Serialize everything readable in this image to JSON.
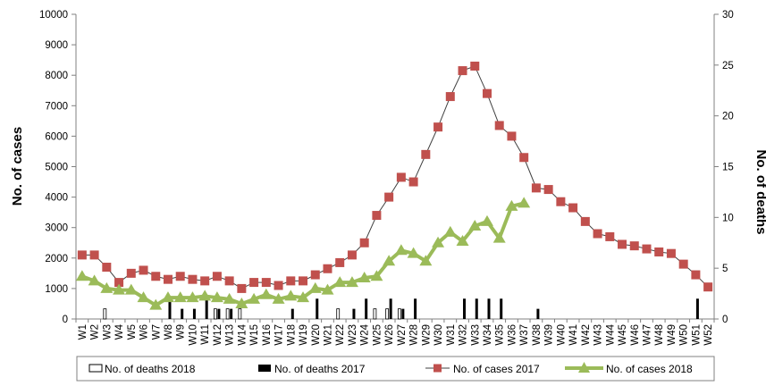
{
  "chart_data": {
    "type": "bar+line",
    "categories": [
      "W1",
      "W2",
      "W3",
      "W4",
      "W5",
      "W6",
      "W7",
      "W8",
      "W9",
      "W10",
      "W11",
      "W12",
      "W13",
      "W14",
      "W15",
      "W16",
      "W17",
      "W18",
      "W19",
      "W20",
      "W21",
      "W22",
      "W23",
      "W24",
      "W25",
      "W26",
      "W27",
      "W28",
      "W29",
      "W30",
      "W31",
      "W32",
      "W33",
      "W34",
      "W35",
      "W36",
      "W37",
      "W38",
      "W39",
      "W40",
      "W41",
      "W42",
      "W43",
      "W44",
      "W45",
      "W46",
      "W47",
      "W48",
      "W49",
      "W50",
      "W51",
      "W52"
    ],
    "left_axis": {
      "label": "No. of cases",
      "min": 0,
      "max": 10000,
      "ticks": [
        "0",
        "1000",
        "2000",
        "3000",
        "4000",
        "5000",
        "6000",
        "7000",
        "8000",
        "9000",
        "10000"
      ]
    },
    "right_axis": {
      "label": "No. of deaths",
      "min": 0,
      "max": 30,
      "ticks": [
        "0",
        "5",
        "10",
        "15",
        "20",
        "25",
        "30"
      ]
    },
    "series": [
      {
        "name": "No. of deaths 2018",
        "type": "bar",
        "axis": "right",
        "color": "#ffffff",
        "stroke": "#000000",
        "values": [
          0,
          0,
          1,
          0,
          0,
          0,
          0,
          0,
          0,
          0,
          0,
          1,
          1,
          1,
          0,
          0,
          0,
          0,
          0,
          0,
          0,
          1,
          0,
          0,
          1,
          1,
          1,
          0,
          0,
          0,
          0,
          0,
          0,
          0,
          0,
          0,
          0,
          null,
          null,
          null,
          null,
          null,
          null,
          null,
          null,
          null,
          null,
          null,
          null,
          null,
          null,
          null
        ]
      },
      {
        "name": "No. of deaths 2017",
        "type": "bar",
        "axis": "right",
        "color": "#000000",
        "values": [
          0,
          0,
          0,
          0,
          0,
          0,
          0,
          2,
          1,
          1,
          2,
          1,
          1,
          0,
          0,
          0,
          0,
          1,
          0,
          2,
          0,
          0,
          1,
          2,
          0,
          2,
          1,
          2,
          0,
          0,
          0,
          2,
          2,
          2,
          2,
          0,
          0,
          1,
          0,
          0,
          0,
          0,
          0,
          0,
          0,
          0,
          0,
          0,
          0,
          0,
          2,
          0
        ]
      },
      {
        "name": "No. of cases 2017",
        "type": "line",
        "axis": "left",
        "color": "#c0504d",
        "line_color": "#404040",
        "marker": "square",
        "values": [
          2100,
          2100,
          1700,
          1200,
          1500,
          1600,
          1400,
          1300,
          1400,
          1300,
          1250,
          1400,
          1250,
          1000,
          1200,
          1200,
          1100,
          1250,
          1250,
          1450,
          1650,
          1850,
          2100,
          2500,
          3400,
          4000,
          4650,
          4500,
          5400,
          6300,
          7300,
          8150,
          8300,
          7400,
          6350,
          6000,
          5300,
          4300,
          4250,
          3850,
          3650,
          3200,
          2800,
          2700,
          2450,
          2400,
          2300,
          2200,
          2150,
          1800,
          1450,
          1050
        ]
      },
      {
        "name": "No. of cases 2018",
        "type": "line",
        "axis": "left",
        "color": "#9bbb59",
        "marker": "triangle",
        "values": [
          1400,
          1250,
          1000,
          950,
          950,
          700,
          450,
          700,
          700,
          700,
          750,
          700,
          650,
          500,
          650,
          800,
          650,
          750,
          700,
          1000,
          950,
          1200,
          1200,
          1350,
          1400,
          1900,
          2250,
          2150,
          1900,
          2500,
          2850,
          2550,
          3050,
          3200,
          2650,
          3700,
          3800,
          null,
          null,
          null,
          null,
          null,
          null,
          null,
          null,
          null,
          null,
          null,
          null,
          null,
          null,
          null
        ]
      }
    ],
    "legend_position": "bottom",
    "grid": false
  }
}
